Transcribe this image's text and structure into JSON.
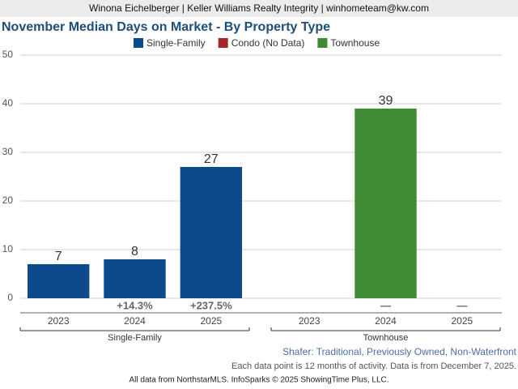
{
  "chart_data": {
    "type": "bar",
    "header": "Winona Eichelberger | Keller Williams Realty Integrity | winhometeam@kw.com",
    "title": "November Median Days on Market - By Property Type",
    "categories": [
      "2023",
      "2024",
      "2025"
    ],
    "series": [
      {
        "name": "Single-Family",
        "color": "#0d4a8c",
        "values": [
          7,
          8,
          27
        ],
        "change_labels": [
          null,
          "+14.3%",
          "+237.5%"
        ]
      },
      {
        "name": "Condo (No Data)",
        "color": "#a3282b",
        "values": [
          null,
          null,
          null
        ]
      },
      {
        "name": "Townhouse",
        "color": "#3f8b34",
        "values": [
          null,
          39,
          null
        ],
        "change_labels": [
          null,
          "—",
          "—"
        ]
      }
    ],
    "ylim": [
      0,
      50
    ],
    "yticks": [
      0,
      10,
      20,
      30,
      40,
      50
    ],
    "grid": true,
    "subtitle": "Shafer: Traditional, Previously Owned, Non-Waterfront",
    "note": "Each data point is 12 months of activity. Data is from December 7, 2025.",
    "source": "All data from NorthstarMLS. InfoSparks © 2025 ShowingTime Plus, LLC."
  }
}
